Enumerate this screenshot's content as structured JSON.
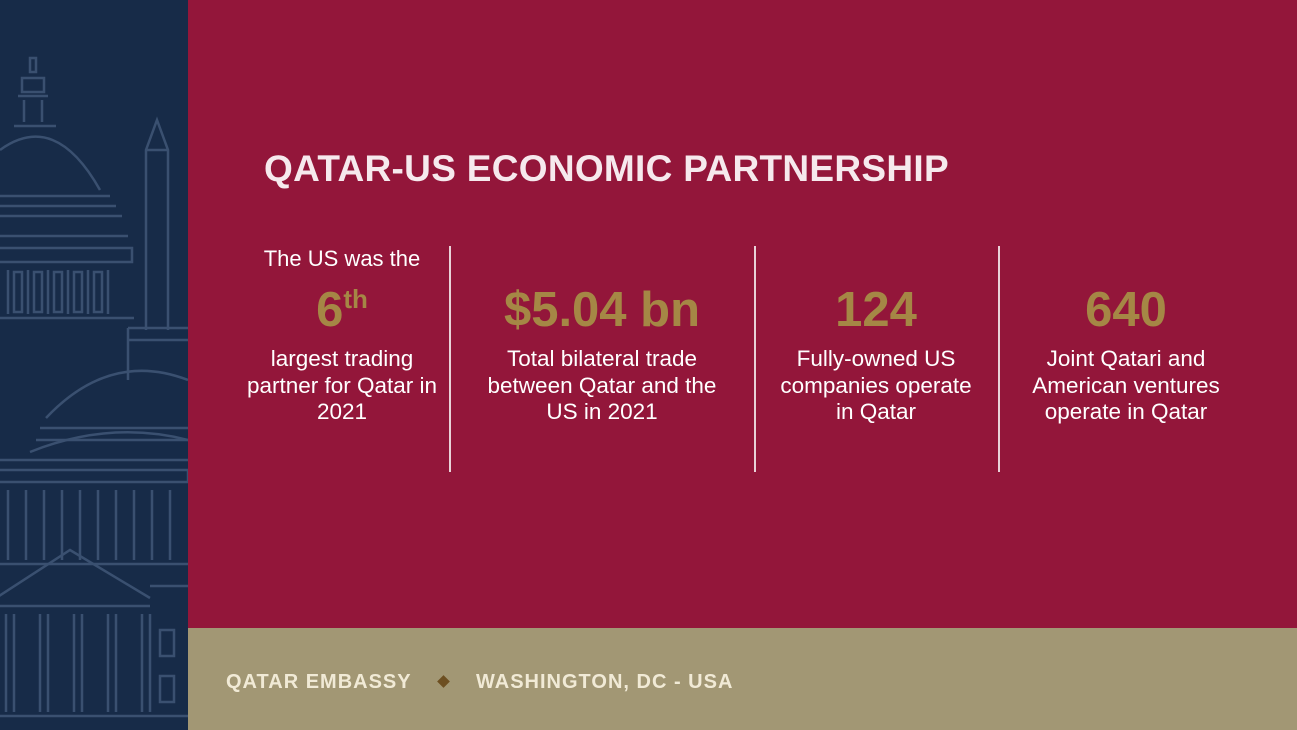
{
  "title": "QATAR-US ECONOMIC PARTNERSHIP",
  "stats": [
    {
      "lead": "The US was the",
      "value": "6",
      "value_sup": "th",
      "desc": "largest trading partner for Qatar in 2021"
    },
    {
      "lead": "",
      "value": "$5.04 bn",
      "value_sup": "",
      "desc": "Total bilateral trade between Qatar and the US in 2021"
    },
    {
      "lead": "",
      "value": "124",
      "value_sup": "",
      "desc": "Fully-owned US companies operate in Qatar"
    },
    {
      "lead": "",
      "value": "640",
      "value_sup": "",
      "desc": "Joint Qatari and American ventures operate in Qatar"
    }
  ],
  "footer": {
    "left": "QATAR EMBASSY",
    "right": "WASHINGTON, DC - USA"
  },
  "colors": {
    "primary": "#93163a",
    "navy": "#172b48",
    "gold": "#a58745",
    "footer": "#a29774"
  },
  "icons": {
    "side_art": "capitol-building-illustration",
    "separator": "diamond-icon"
  }
}
